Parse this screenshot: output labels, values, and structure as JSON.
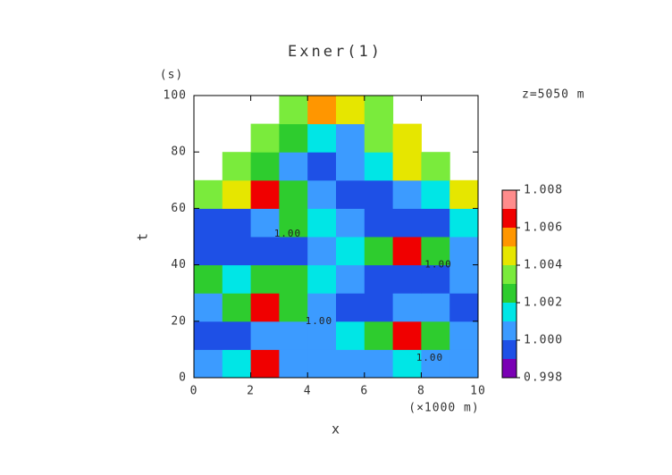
{
  "chart_data": {
    "type": "contour",
    "title": "Exner(1)",
    "x_label": "x",
    "x_unit": "(×1000 m)",
    "y_label": "t",
    "y_unit": "(s)",
    "subtitle": "z=5050 m",
    "xlim": [
      0,
      10
    ],
    "ylim": [
      0,
      100
    ],
    "xticks": [
      0,
      2,
      4,
      6,
      8,
      10
    ],
    "yticks": [
      0,
      20,
      40,
      60,
      80,
      100
    ],
    "x_edges": [
      0,
      1,
      2,
      3,
      4,
      5,
      6,
      7,
      8,
      9,
      10
    ],
    "y_edges": [
      0,
      10,
      20,
      30,
      40,
      50,
      60,
      70,
      80,
      90,
      100
    ],
    "z": [
      [
        1.0005,
        1.0012,
        1.0065,
        1.0005,
        1.0005,
        1.0005,
        1.0005,
        1.0012,
        1.0005,
        1.0005
      ],
      [
        0.9995,
        0.9995,
        1.0005,
        1.0005,
        1.0005,
        1.0012,
        1.0025,
        1.0065,
        1.0025,
        1.0005
      ],
      [
        1.0005,
        1.0025,
        1.0065,
        1.0025,
        1.0005,
        0.9995,
        0.9995,
        1.0005,
        1.0005,
        0.9995
      ],
      [
        1.0025,
        1.0012,
        1.0025,
        1.0025,
        1.0012,
        1.0005,
        0.9995,
        0.9995,
        0.9995,
        1.0005
      ],
      [
        0.9995,
        0.9995,
        0.9995,
        0.9995,
        1.0005,
        1.0012,
        1.0025,
        1.0065,
        1.0025,
        1.0005
      ],
      [
        0.9995,
        0.9995,
        1.0005,
        1.0025,
        1.0012,
        1.0005,
        0.9995,
        0.9995,
        0.9995,
        1.0012
      ],
      [
        1.0035,
        1.0045,
        1.0065,
        1.0025,
        1.0005,
        0.9995,
        0.9995,
        1.0005,
        1.0012,
        1.0045
      ],
      [
        null,
        1.0035,
        1.0025,
        1.0005,
        0.9995,
        1.0005,
        1.0012,
        1.0045,
        1.0035,
        null
      ],
      [
        null,
        null,
        1.0035,
        1.0025,
        1.0012,
        1.0005,
        1.0035,
        1.0045,
        null,
        null
      ],
      [
        null,
        null,
        null,
        1.0035,
        1.0055,
        1.0045,
        1.0035,
        null,
        null,
        null
      ]
    ],
    "annotations": [
      {
        "text": "1.00",
        "x": 8.3,
        "y": 7
      },
      {
        "text": "1.00",
        "x": 4.4,
        "y": 20
      },
      {
        "text": "1.00",
        "x": 8.6,
        "y": 40
      },
      {
        "text": "1.00",
        "x": 3.3,
        "y": 51
      }
    ],
    "colorbar": {
      "levels": [
        0.998,
        0.999,
        1.0,
        1.001,
        1.002,
        1.003,
        1.004,
        1.005,
        1.006,
        1.007,
        1.008
      ],
      "colors": [
        "#7a00b4",
        "#1e50e6",
        "#3c9bff",
        "#00e6e6",
        "#2ecc2e",
        "#7aeb3c",
        "#e6e600",
        "#ff9600",
        "#f00000",
        "#ff8c8c"
      ],
      "ticks": [
        0.998,
        {
          "value": 1.0,
          "label": "1.000"
        },
        1.002,
        1.004,
        1.006,
        1.008
      ]
    }
  }
}
